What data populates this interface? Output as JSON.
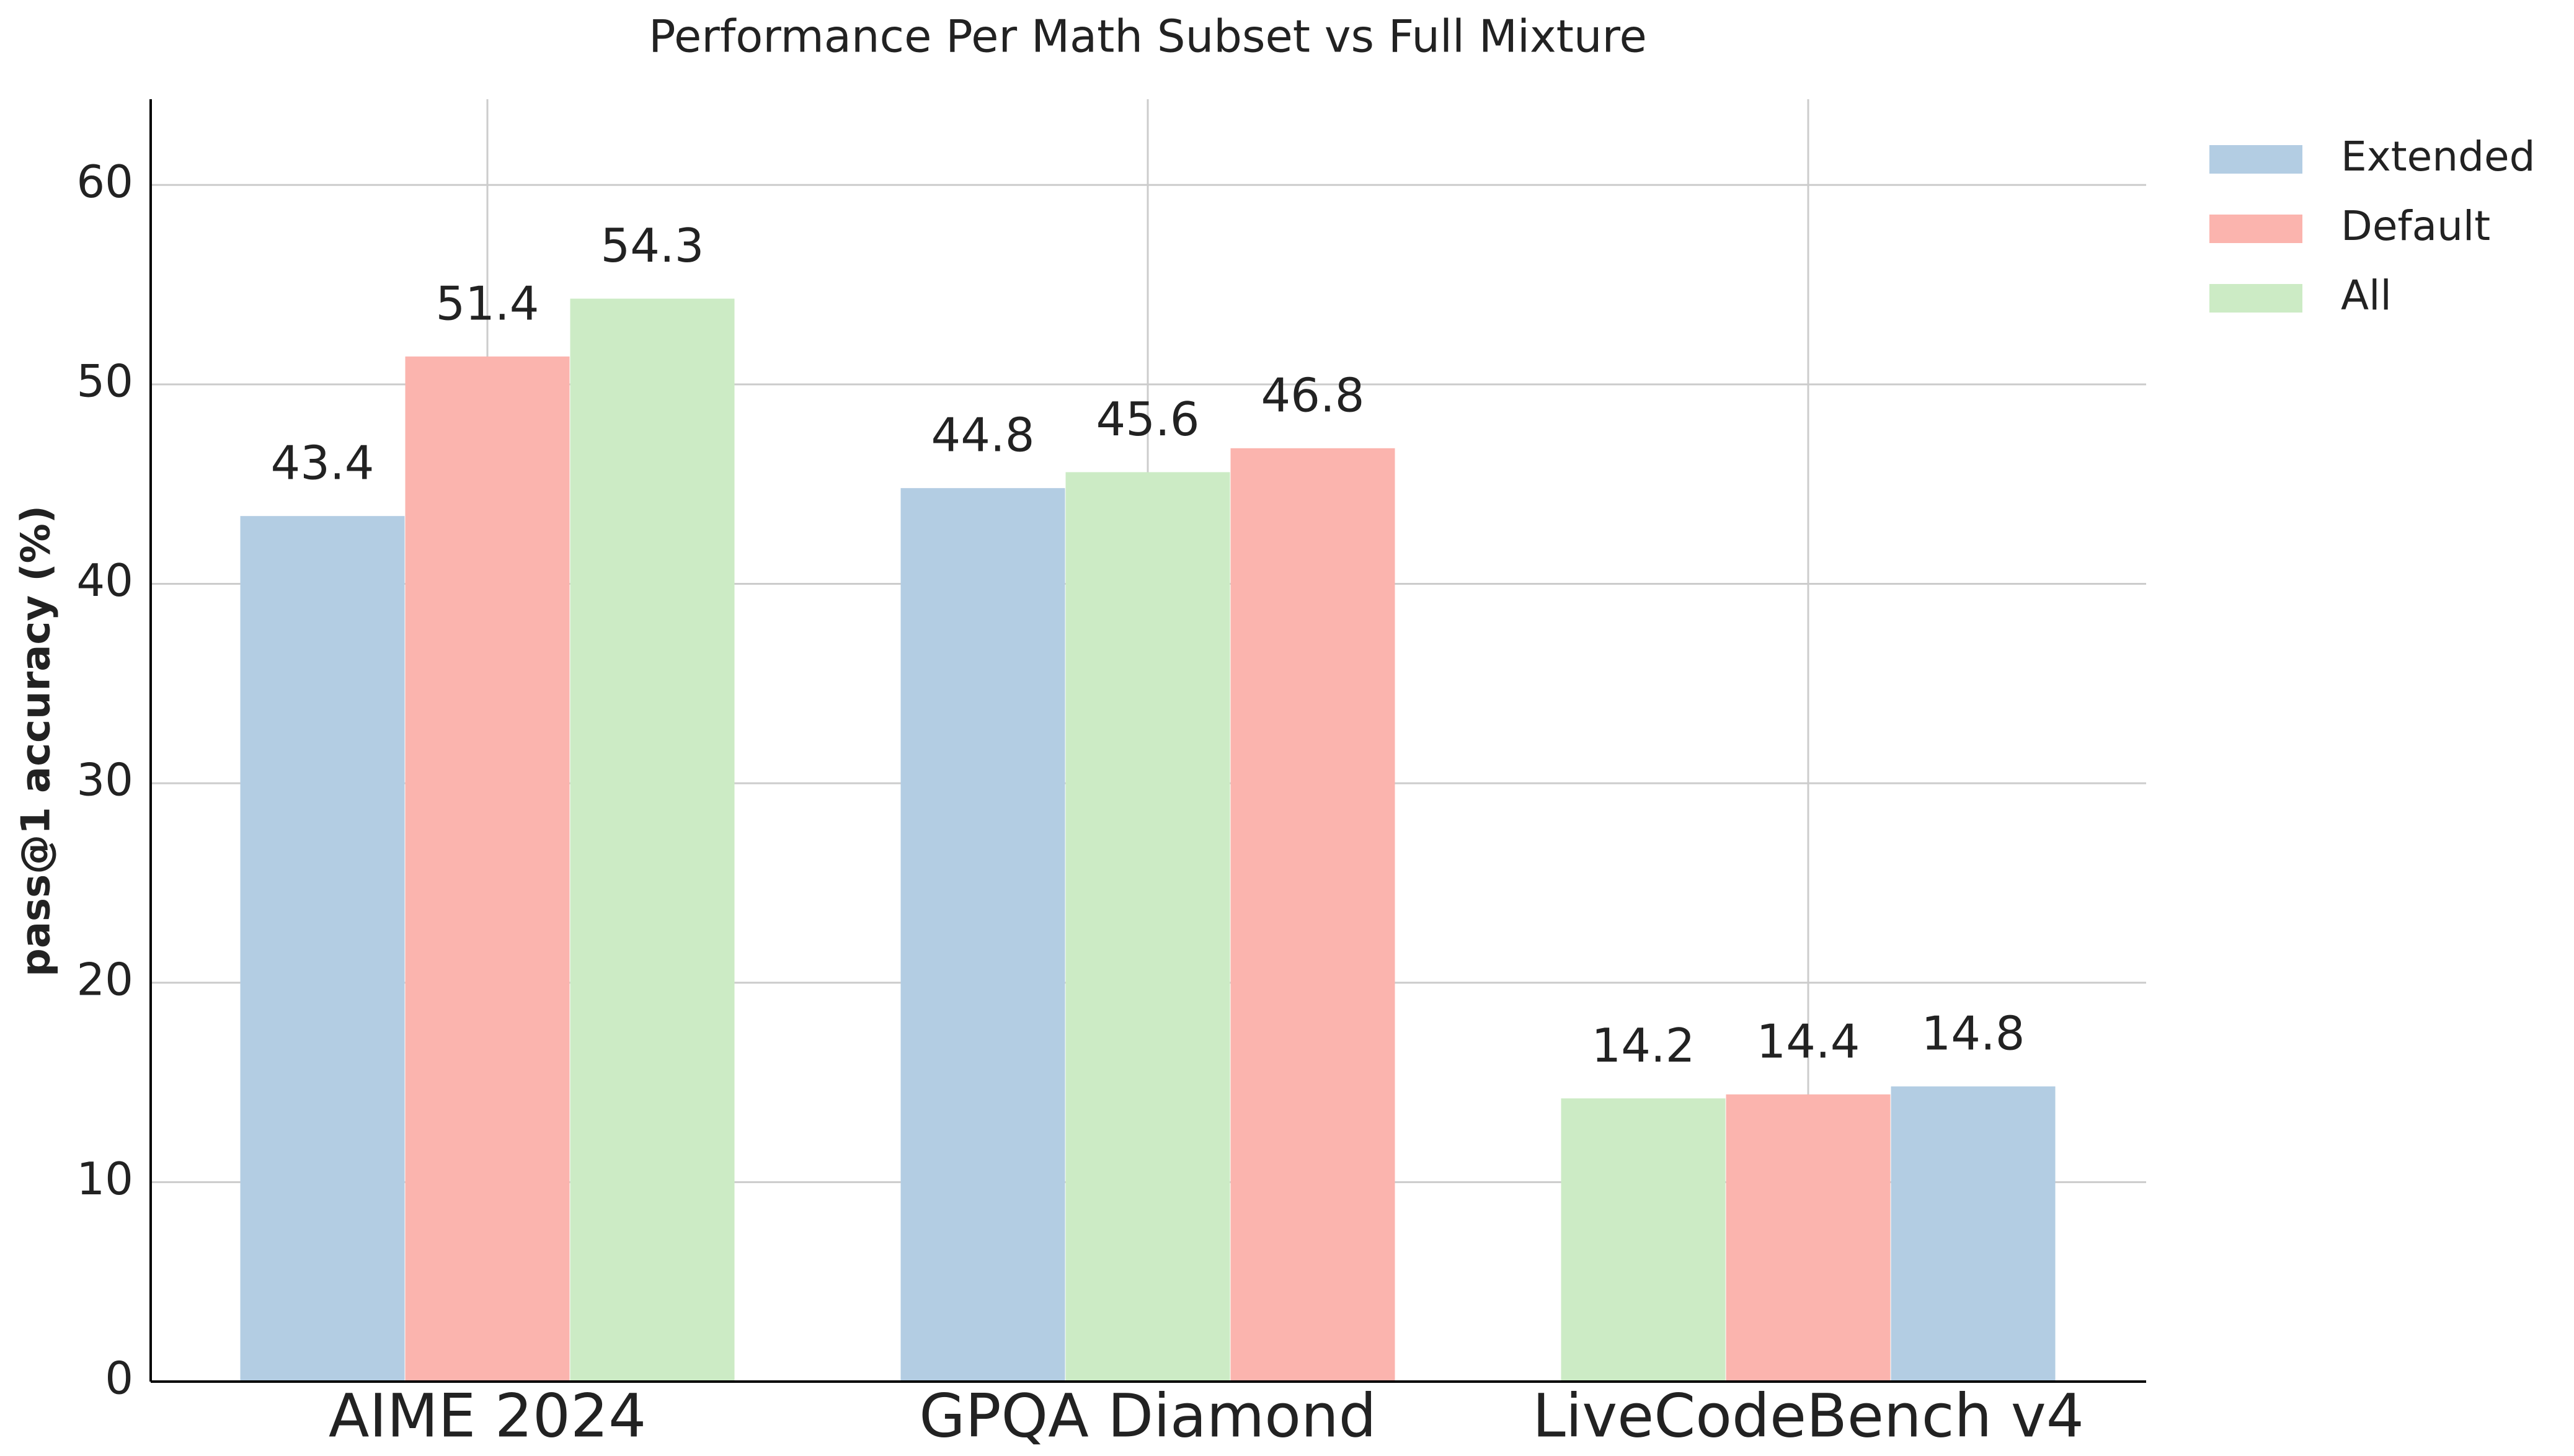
{
  "chart_data": {
    "type": "bar",
    "title": "Performance Per Math Subset vs Full Mixture",
    "y_label": "pass@1 accuracy (%)",
    "categories": [
      "AIME 2024",
      "GPQA Diamond",
      "LiveCodeBench v4"
    ],
    "series": [
      {
        "name": "Extended",
        "color": "#b3cde3",
        "values": [
          43.4,
          44.8,
          14.8
        ]
      },
      {
        "name": "Default",
        "color": "#fbb4ae",
        "values": [
          51.4,
          46.8,
          14.4
        ]
      },
      {
        "name": "All",
        "color": "#ccebc5",
        "values": [
          54.3,
          45.6,
          14.2
        ]
      }
    ],
    "ylim": [
      0,
      64.3
    ],
    "yticks": [
      0,
      10,
      20,
      30,
      40,
      50,
      60
    ],
    "grid": true,
    "legend": "upper right outside"
  }
}
